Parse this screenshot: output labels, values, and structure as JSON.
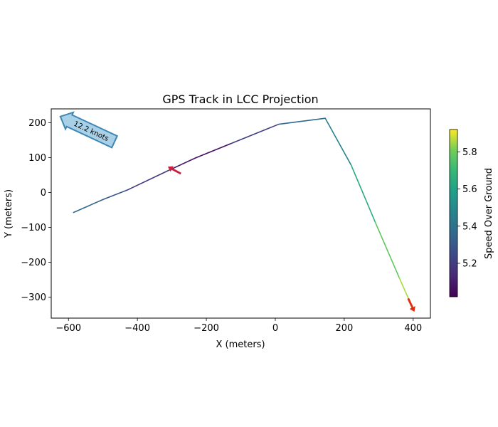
{
  "chart_data": {
    "type": "line",
    "title": "GPS Track in LCC Projection",
    "xlabel": "X (meters)",
    "ylabel": "Y (meters)",
    "xlim": [
      -650,
      450
    ],
    "ylim": [
      -360,
      240
    ],
    "xticks": [
      -600,
      -400,
      -200,
      0,
      200,
      400
    ],
    "yticks": [
      -300,
      -200,
      -100,
      0,
      100,
      200
    ],
    "xtick_labels": [
      "−600",
      "−400",
      "−200",
      "0",
      "200",
      "400"
    ],
    "ytick_labels": [
      "−300",
      "−200",
      "−100",
      "0",
      "100",
      "200"
    ],
    "grid": false,
    "series": [
      {
        "name": "track",
        "x": [
          -585,
          -500,
          -430,
          -300,
          -230,
          -130,
          10,
          145,
          220,
          290,
          360,
          398
        ],
        "y": [
          -57,
          -20,
          7,
          68,
          100,
          140,
          196,
          213,
          79,
          -85,
          -245,
          -330
        ],
        "speed": [
          5.38,
          5.34,
          5.26,
          5.12,
          5.04,
          5.08,
          5.34,
          5.38,
          5.55,
          5.72,
          5.84,
          5.87
        ]
      }
    ],
    "arrows": [
      {
        "x": -300,
        "y": 68,
        "angle_deg": 152,
        "color": "#c82040"
      },
      {
        "x": 398,
        "y": -330,
        "angle_deg": -65,
        "color": "#e03010"
      }
    ],
    "annotation": {
      "text": "12.2 knots",
      "x": -530,
      "y": 175,
      "rotation_deg": -25,
      "fill": "#a8d0e6",
      "edge": "#3e86b4"
    },
    "colorbar": {
      "label": "Speed Over Ground",
      "min": 5.02,
      "max": 5.92,
      "ticks": [
        5.2,
        5.4,
        5.6,
        5.8
      ],
      "tick_labels": [
        "5.2",
        "5.4",
        "5.6",
        "5.8"
      ],
      "colormap": "viridis"
    }
  }
}
